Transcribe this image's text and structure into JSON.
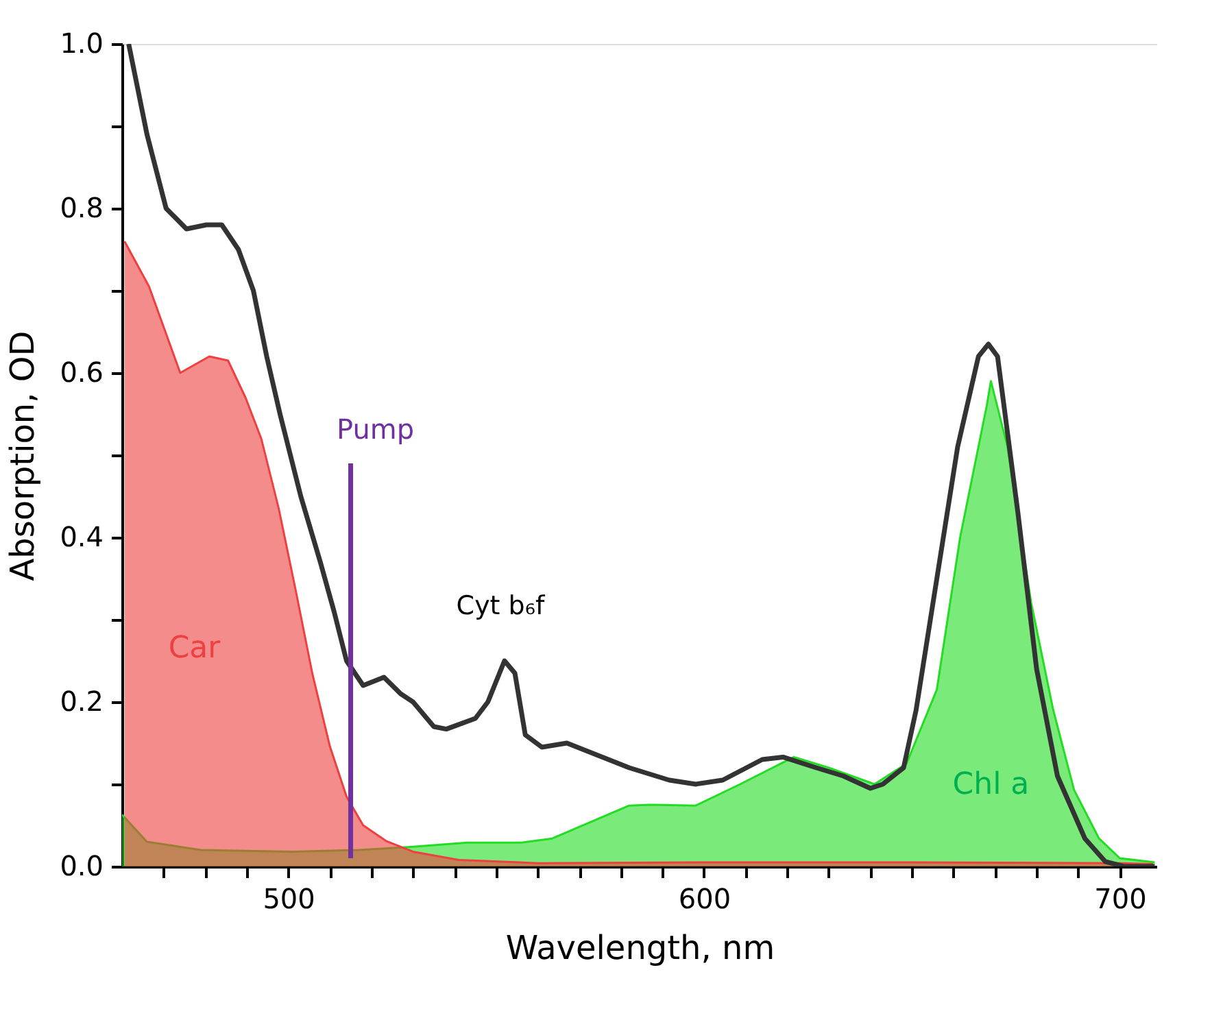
{
  "chart_data": {
    "type": "area",
    "xlabel": "Wavelength, nm",
    "ylabel": "Absorption, OD",
    "xlim": [
      460,
      709
    ],
    "ylim": [
      0,
      1.0
    ],
    "xticks": [
      {
        "value": 470,
        "label": null
      },
      {
        "value": 480,
        "label": null
      },
      {
        "value": 490,
        "label": null
      },
      500,
      {
        "value": 510,
        "label": null
      },
      {
        "value": 520,
        "label": null
      },
      {
        "value": 530,
        "label": null
      },
      {
        "value": 540,
        "label": null
      },
      {
        "value": 550,
        "label": null
      },
      {
        "value": 560,
        "label": null
      },
      {
        "value": 570,
        "label": null
      },
      {
        "value": 580,
        "label": null
      },
      {
        "value": 590,
        "label": null
      },
      600,
      {
        "value": 610,
        "label": null
      },
      {
        "value": 620,
        "label": null
      },
      {
        "value": 630,
        "label": null
      },
      {
        "value": 640,
        "label": null
      },
      {
        "value": 650,
        "label": null
      },
      {
        "value": 660,
        "label": null
      },
      {
        "value": 670,
        "label": null
      },
      {
        "value": 680,
        "label": null
      },
      {
        "value": 690,
        "label": null
      },
      700
    ],
    "yticks": [
      {
        "value": 0,
        "label": "0.0"
      },
      {
        "value": 0.1,
        "label": null
      },
      0.2,
      {
        "value": 0.3,
        "label": null
      },
      0.4,
      {
        "value": 0.5,
        "label": null
      },
      0.6,
      {
        "value": 0.7,
        "label": null
      },
      0.8,
      {
        "value": 0.9,
        "label": null
      },
      {
        "value": 1.0,
        "label": "1.0"
      }
    ],
    "grid": false,
    "series": [
      {
        "name": "Chl a",
        "color": "#22dd22",
        "x": [
          460,
          466,
          479,
          501,
          517,
          530,
          543,
          556,
          563.5,
          582,
          587,
          598,
          608.7,
          621.6,
          630,
          641,
          648.7,
          656,
          661.6,
          668,
          669,
          673,
          678.7,
          684,
          689,
          695,
          700,
          708.4
        ],
        "values": [
          0.063,
          0.03,
          0.02,
          0.018,
          0.02,
          0.024,
          0.029,
          0.029,
          0.034,
          0.074,
          0.075,
          0.074,
          0.1,
          0.133,
          0.12,
          0.1,
          0.125,
          0.215,
          0.4,
          0.56,
          0.59,
          0.51,
          0.32,
          0.19,
          0.093,
          0.034,
          0.01,
          0.005
        ]
      },
      {
        "name": "Car",
        "color": "#ee4040",
        "x": [
          460.6,
          466.5,
          474,
          481,
          485.5,
          489.7,
          493.5,
          497.7,
          501.8,
          505.8,
          510,
          514,
          518,
          523.5,
          530,
          541,
          560,
          600,
          650,
          700,
          708
        ],
        "values": [
          0.76,
          0.705,
          0.6,
          0.62,
          0.615,
          0.57,
          0.52,
          0.435,
          0.335,
          0.234,
          0.146,
          0.085,
          0.05,
          0.031,
          0.018,
          0.008,
          0.004,
          0.005,
          0.005,
          0.004,
          0.003
        ]
      },
      {
        "type": "line",
        "color": "#333333",
        "x": [
          461.6,
          466,
          470.6,
          475.5,
          480.3,
          484,
          488,
          491.6,
          494.8,
          498,
          503,
          507.7,
          511,
          514,
          518,
          523,
          527,
          530,
          535,
          538,
          545,
          548,
          552,
          554.5,
          557,
          561,
          567,
          572,
          582,
          591.6,
          598,
          604.5,
          614,
          619,
          627,
          633.5,
          640,
          643,
          648,
          651,
          656,
          661,
          666,
          668.4,
          670.6,
          675.5,
          680,
          685,
          691.6,
          696.5,
          701,
          708.4
        ],
        "values": [
          1.0,
          0.89,
          0.8,
          0.775,
          0.78,
          0.78,
          0.75,
          0.7,
          0.62,
          0.55,
          0.45,
          0.37,
          0.31,
          0.25,
          0.22,
          0.23,
          0.21,
          0.2,
          0.17,
          0.167,
          0.18,
          0.2,
          0.25,
          0.235,
          0.16,
          0.145,
          0.15,
          0.14,
          0.12,
          0.105,
          0.1,
          0.105,
          0.13,
          0.133,
          0.12,
          0.11,
          0.095,
          0.1,
          0.12,
          0.19,
          0.35,
          0.51,
          0.62,
          0.635,
          0.62,
          0.43,
          0.24,
          0.11,
          0.034,
          0.006,
          0.0,
          0.0
        ]
      },
      {
        "name": "Pump",
        "type": "line",
        "color": "#7030a0",
        "x": [
          515,
          515
        ],
        "values": [
          0.01,
          0.49
        ]
      }
    ],
    "annotations": [
      {
        "text": "Cyt b₆f",
        "x": 553,
        "y": 0.25
      }
    ]
  }
}
